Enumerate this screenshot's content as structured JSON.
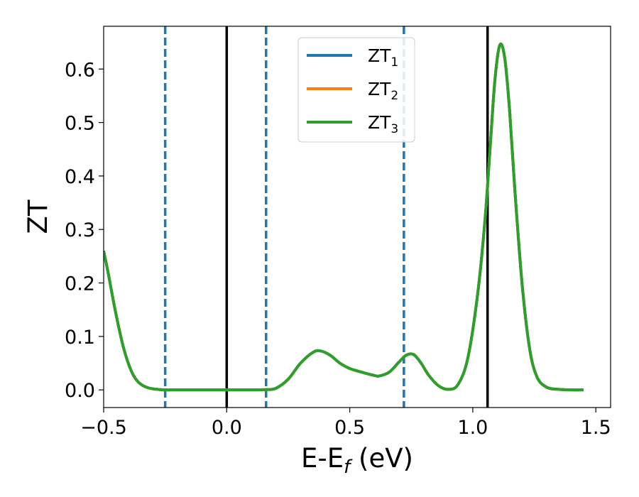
{
  "chart_data": {
    "type": "line",
    "xlabel": "E-E",
    "xlabel_sub": "f",
    "xlabel_unit": " (eV)",
    "ylabel": "ZT",
    "xlim": [
      -0.5,
      1.56
    ],
    "ylim": [
      -0.033,
      0.68
    ],
    "xticks": [
      -0.5,
      0.0,
      0.5,
      1.0,
      1.5
    ],
    "xtick_labels": [
      "−0.5",
      "0.0",
      "0.5",
      "1.0",
      "1.5"
    ],
    "yticks": [
      0.0,
      0.1,
      0.2,
      0.3,
      0.4,
      0.5,
      0.6
    ],
    "ytick_labels": [
      "0.0",
      "0.1",
      "0.2",
      "0.3",
      "0.4",
      "0.5",
      "0.6"
    ],
    "grid": false,
    "legend_position": "upper-center",
    "vlines_solid": [
      0.0,
      1.06
    ],
    "vlines_dashed": [
      -0.25,
      0.16,
      0.72
    ],
    "series": [
      {
        "name": "ZT",
        "name_sub": "1",
        "color": "#1f77b4",
        "x": [
          -0.5,
          -0.48,
          -0.46,
          -0.44,
          -0.42,
          -0.4,
          -0.38,
          -0.36,
          -0.34,
          -0.32,
          -0.3,
          -0.28,
          -0.25,
          -0.2,
          -0.1,
          0.0,
          0.1,
          0.16,
          0.2,
          0.25,
          0.3,
          0.35,
          0.38,
          0.42,
          0.46,
          0.5,
          0.55,
          0.6,
          0.62,
          0.66,
          0.7,
          0.73,
          0.76,
          0.79,
          0.82,
          0.86,
          0.9,
          0.94,
          0.98,
          1.02,
          1.05,
          1.07,
          1.09,
          1.11,
          1.13,
          1.15,
          1.17,
          1.2,
          1.23,
          1.26,
          1.3,
          1.35,
          1.4,
          1.45
        ],
        "values": [
          0.26,
          0.215,
          0.165,
          0.12,
          0.08,
          0.05,
          0.028,
          0.015,
          0.008,
          0.004,
          0.002,
          0.001,
          0.0,
          0.0,
          0.0,
          0.0,
          0.0,
          0.0005,
          0.003,
          0.02,
          0.05,
          0.07,
          0.073,
          0.065,
          0.05,
          0.04,
          0.033,
          0.027,
          0.026,
          0.033,
          0.052,
          0.065,
          0.066,
          0.05,
          0.028,
          0.008,
          0.001,
          0.01,
          0.06,
          0.18,
          0.32,
          0.45,
          0.58,
          0.645,
          0.62,
          0.52,
          0.38,
          0.2,
          0.08,
          0.025,
          0.005,
          0.001,
          0.0,
          0.0
        ]
      },
      {
        "name": "ZT",
        "name_sub": "2",
        "color": "#ff7f0e",
        "x": [
          -0.5,
          -0.48,
          -0.46,
          -0.44,
          -0.42,
          -0.4,
          -0.38,
          -0.36,
          -0.34,
          -0.32,
          -0.3,
          -0.28,
          -0.25,
          -0.2,
          -0.1,
          0.0,
          0.1,
          0.16,
          0.2,
          0.25,
          0.3,
          0.35,
          0.38,
          0.42,
          0.46,
          0.5,
          0.55,
          0.6,
          0.62,
          0.66,
          0.7,
          0.73,
          0.76,
          0.79,
          0.82,
          0.86,
          0.9,
          0.94,
          0.98,
          1.02,
          1.05,
          1.07,
          1.09,
          1.11,
          1.13,
          1.15,
          1.17,
          1.2,
          1.23,
          1.26,
          1.3,
          1.35,
          1.4,
          1.45
        ],
        "values": [
          0.26,
          0.215,
          0.165,
          0.12,
          0.08,
          0.05,
          0.028,
          0.015,
          0.008,
          0.004,
          0.002,
          0.001,
          0.0,
          0.0,
          0.0,
          0.0,
          0.0,
          0.0005,
          0.003,
          0.02,
          0.05,
          0.07,
          0.073,
          0.065,
          0.05,
          0.04,
          0.033,
          0.027,
          0.026,
          0.033,
          0.052,
          0.065,
          0.066,
          0.05,
          0.028,
          0.008,
          0.001,
          0.01,
          0.06,
          0.18,
          0.32,
          0.45,
          0.58,
          0.645,
          0.62,
          0.52,
          0.38,
          0.2,
          0.08,
          0.025,
          0.005,
          0.001,
          0.0,
          0.0
        ]
      },
      {
        "name": "ZT",
        "name_sub": "3",
        "color": "#2ca02c",
        "x": [
          -0.5,
          -0.48,
          -0.46,
          -0.44,
          -0.42,
          -0.4,
          -0.38,
          -0.36,
          -0.34,
          -0.32,
          -0.3,
          -0.28,
          -0.25,
          -0.2,
          -0.1,
          0.0,
          0.1,
          0.16,
          0.2,
          0.25,
          0.3,
          0.35,
          0.38,
          0.42,
          0.46,
          0.5,
          0.55,
          0.6,
          0.62,
          0.66,
          0.7,
          0.73,
          0.76,
          0.79,
          0.82,
          0.86,
          0.9,
          0.94,
          0.98,
          1.02,
          1.05,
          1.07,
          1.09,
          1.11,
          1.13,
          1.15,
          1.17,
          1.2,
          1.23,
          1.26,
          1.3,
          1.35,
          1.4,
          1.45
        ],
        "values": [
          0.26,
          0.215,
          0.165,
          0.12,
          0.08,
          0.05,
          0.028,
          0.015,
          0.008,
          0.004,
          0.002,
          0.001,
          0.0,
          0.0,
          0.0,
          0.0,
          0.0,
          0.0005,
          0.003,
          0.02,
          0.05,
          0.07,
          0.073,
          0.065,
          0.05,
          0.04,
          0.033,
          0.027,
          0.026,
          0.033,
          0.052,
          0.065,
          0.066,
          0.05,
          0.028,
          0.008,
          0.001,
          0.01,
          0.06,
          0.18,
          0.32,
          0.45,
          0.58,
          0.645,
          0.62,
          0.52,
          0.38,
          0.2,
          0.08,
          0.025,
          0.005,
          0.001,
          0.0,
          0.0
        ]
      }
    ],
    "vline_colors": {
      "solid": "#000000",
      "dashed": "#1f77b4"
    }
  }
}
